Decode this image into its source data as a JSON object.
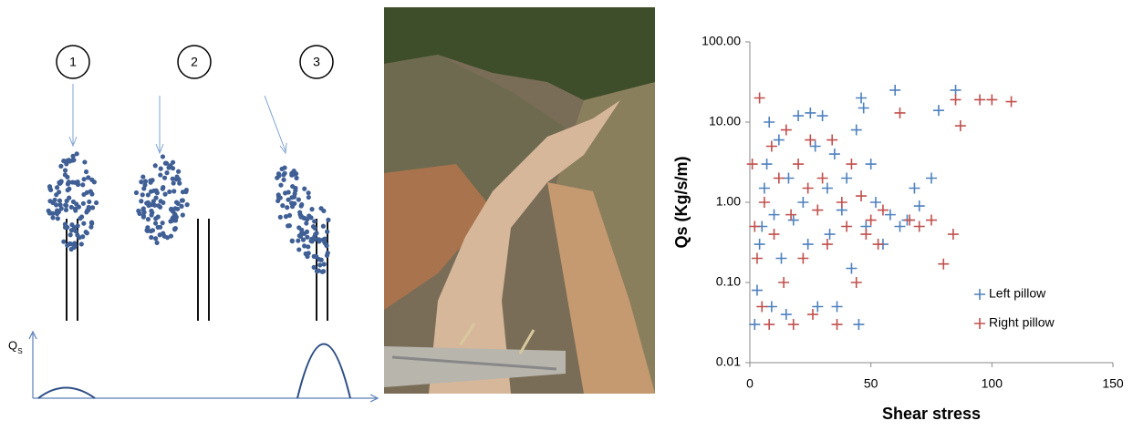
{
  "diagram": {
    "labels": [
      "1",
      "2",
      "3"
    ],
    "axis_label": "Q",
    "axis_label_sub": "S"
  },
  "chart_data": {
    "type": "scatter",
    "xlabel": "Shear stress",
    "ylabel": "Qs (Kg/s/m)",
    "xlim": [
      0,
      150
    ],
    "xticks": [
      0,
      50,
      100,
      150
    ],
    "ylim": [
      0.01,
      100
    ],
    "log_y": true,
    "yticks": [
      {
        "value": 0.01,
        "label": "0.01"
      },
      {
        "value": 0.1,
        "label": "0.10"
      },
      {
        "value": 1,
        "label": "1.00"
      },
      {
        "value": 10,
        "label": "10.00"
      },
      {
        "value": 100,
        "label": "100.00"
      }
    ],
    "legend": "right",
    "series": [
      {
        "name": "Left pillow",
        "color": "#4f81bd",
        "x": [
          2,
          3,
          4,
          5,
          6,
          7,
          8,
          9,
          10,
          12,
          13,
          15,
          16,
          18,
          20,
          22,
          24,
          25,
          27,
          28,
          30,
          32,
          33,
          35,
          36,
          38,
          40,
          42,
          44,
          45,
          46,
          47,
          48,
          50,
          52,
          55,
          58,
          60,
          62,
          65,
          68,
          70,
          75,
          78,
          85
        ],
        "values": [
          0.03,
          0.08,
          0.3,
          0.5,
          1.5,
          3,
          10,
          0.05,
          0.7,
          6,
          0.2,
          0.04,
          2,
          0.6,
          12,
          1,
          0.3,
          13,
          5,
          0.05,
          12,
          1.5,
          0.4,
          4,
          0.05,
          0.8,
          2,
          0.15,
          8,
          0.03,
          20,
          15,
          0.5,
          3,
          1,
          0.3,
          0.7,
          25,
          0.5,
          0.6,
          1.5,
          0.9,
          2,
          14,
          25
        ]
      },
      {
        "name": "Right pillow",
        "color": "#c0504d",
        "x": [
          1,
          2,
          3,
          4,
          5,
          6,
          8,
          9,
          10,
          12,
          14,
          15,
          17,
          18,
          20,
          22,
          24,
          25,
          26,
          28,
          30,
          32,
          34,
          36,
          38,
          40,
          42,
          44,
          46,
          48,
          50,
          53,
          55,
          62,
          66,
          70,
          75,
          80,
          84,
          85,
          87,
          95,
          100,
          108
        ],
        "values": [
          3,
          0.5,
          0.2,
          20,
          0.05,
          1,
          0.03,
          5,
          0.4,
          2,
          0.1,
          8,
          0.7,
          0.03,
          3,
          0.2,
          1.5,
          6,
          0.04,
          0.8,
          2,
          0.3,
          6,
          0.03,
          1,
          0.5,
          3,
          0.1,
          1.2,
          0.4,
          0.6,
          0.3,
          0.8,
          13,
          0.6,
          0.5,
          0.6,
          0.17,
          0.4,
          19,
          9,
          19,
          19,
          18
        ]
      }
    ]
  }
}
